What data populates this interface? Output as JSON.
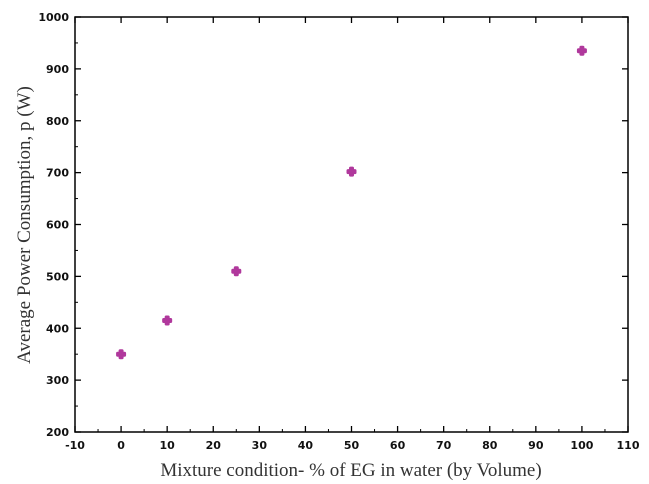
{
  "chart_data": {
    "type": "scatter",
    "title": "",
    "xlabel": "Mixture condition- % of EG in water (by Volume)",
    "ylabel": "Average Power Consumption, p (W)",
    "xlim": [
      -10,
      110
    ],
    "ylim": [
      200,
      1000
    ],
    "x_ticks": [
      -10,
      0,
      10,
      20,
      30,
      40,
      50,
      60,
      70,
      80,
      90,
      100,
      110
    ],
    "y_ticks": [
      200,
      300,
      400,
      500,
      600,
      700,
      800,
      900,
      1000
    ],
    "grid": false,
    "marker": "plus",
    "marker_color": "#b0389c",
    "series": [
      {
        "x": [
          0,
          10,
          25,
          50,
          100
        ],
        "y": [
          350,
          415,
          510,
          702,
          935
        ]
      }
    ]
  }
}
